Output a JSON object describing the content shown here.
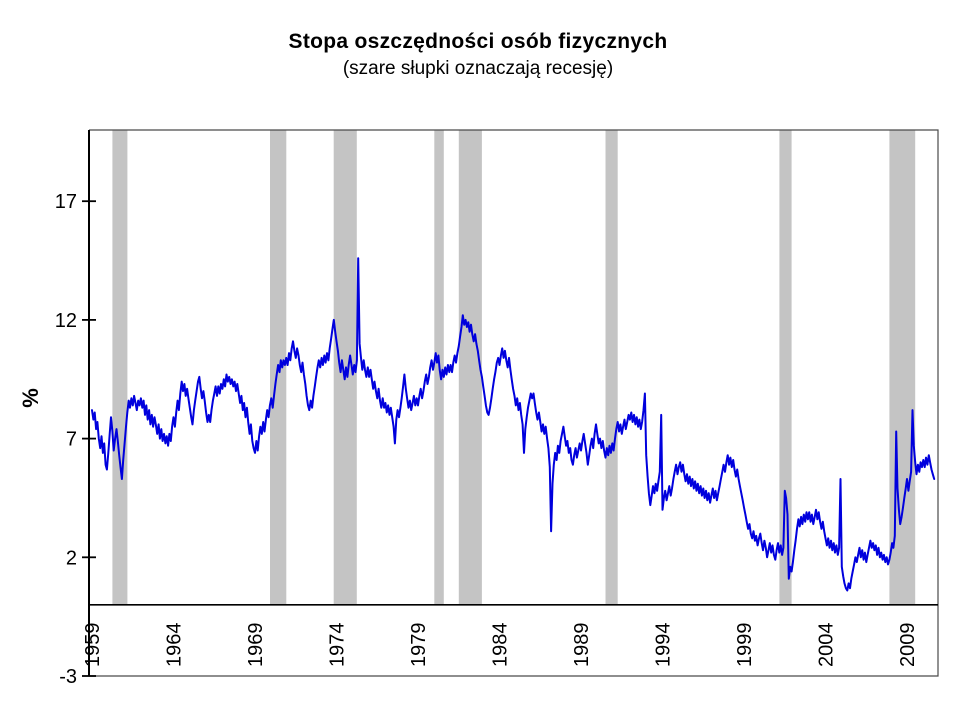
{
  "chart_data": {
    "type": "line",
    "title": "Stopa oszczędności osób fizycznych",
    "subtitle": "(szare słupki oznaczają recesję)",
    "ylabel": "%",
    "xlabel": "",
    "frequency": "monthly",
    "start": "1959-01",
    "end": "2010-09",
    "xlim": [
      1959,
      2010.9
    ],
    "ylim": [
      -3,
      20
    ],
    "y_ticks": [
      -3,
      2,
      7,
      12,
      17
    ],
    "x_ticks": [
      1959,
      1964,
      1969,
      1974,
      1979,
      1984,
      1989,
      1994,
      1999,
      2004,
      2009
    ],
    "grid": false,
    "legend": "none",
    "zero_axis_value": 0,
    "recession_color": "#C4C4C4",
    "frame_color": "#4a4a4a",
    "axis_color": "#000000",
    "recessions": [
      [
        1960.25,
        1961.17
      ],
      [
        1969.92,
        1970.92
      ],
      [
        1973.83,
        1975.25
      ],
      [
        1980.0,
        1980.58
      ],
      [
        1981.5,
        1982.92
      ],
      [
        1990.5,
        1991.25
      ],
      [
        2001.17,
        2001.92
      ],
      [
        2007.92,
        2009.5
      ]
    ],
    "series": [
      {
        "name": "stopa oszczędności (%)",
        "color": "#0000DD",
        "values": [
          8.2,
          7.8,
          8.1,
          7.4,
          7.7,
          7.0,
          6.6,
          7.1,
          6.4,
          6.8,
          5.9,
          5.7,
          6.4,
          7.2,
          7.9,
          7.3,
          6.5,
          7.0,
          7.4,
          6.9,
          6.3,
          5.8,
          5.3,
          6.1,
          6.8,
          7.5,
          8.1,
          8.6,
          8.3,
          8.7,
          8.4,
          8.8,
          8.5,
          8.2,
          8.6,
          8.4,
          8.7,
          8.3,
          8.6,
          8.0,
          8.4,
          7.8,
          8.2,
          7.6,
          8.0,
          7.5,
          7.9,
          7.6,
          7.2,
          7.6,
          7.0,
          7.4,
          6.9,
          7.2,
          6.8,
          7.1,
          6.7,
          7.2,
          6.9,
          7.5,
          7.9,
          7.5,
          8.1,
          8.6,
          8.2,
          8.9,
          9.4,
          9.0,
          9.3,
          8.8,
          9.1,
          8.7,
          8.3,
          7.9,
          7.6,
          8.2,
          8.6,
          9.0,
          9.4,
          9.6,
          9.1,
          8.7,
          9.0,
          8.6,
          8.1,
          7.7,
          8.0,
          7.7,
          8.2,
          8.6,
          8.9,
          9.2,
          8.8,
          9.2,
          8.9,
          9.3,
          9.1,
          9.5,
          9.2,
          9.7,
          9.4,
          9.6,
          9.3,
          9.5,
          9.2,
          9.4,
          9.0,
          9.3,
          8.9,
          8.5,
          8.8,
          8.2,
          8.5,
          7.9,
          8.3,
          7.7,
          7.2,
          7.6,
          6.9,
          6.6,
          6.4,
          6.9,
          6.5,
          7.1,
          7.5,
          7.2,
          7.7,
          7.3,
          7.8,
          8.2,
          7.9,
          8.4,
          8.7,
          8.3,
          8.8,
          9.3,
          9.7,
          10.1,
          9.8,
          10.3,
          10.0,
          10.3,
          10.1,
          10.4,
          10.1,
          10.6,
          10.3,
          10.8,
          11.1,
          10.7,
          10.4,
          10.8,
          10.5,
          10.1,
          9.8,
          10.2,
          9.7,
          9.3,
          8.8,
          8.4,
          8.2,
          8.6,
          8.3,
          8.8,
          9.2,
          9.6,
          10.0,
          10.3,
          10.0,
          10.4,
          10.1,
          10.5,
          10.2,
          10.6,
          10.3,
          10.8,
          11.2,
          11.6,
          12.0,
          11.5,
          11.1,
          10.7,
          10.2,
          9.8,
          10.3,
          9.9,
          9.5,
          10.0,
          9.6,
          10.1,
          10.5,
          10.1,
          9.7,
          10.1,
          9.8,
          10.3,
          14.6,
          11.0,
          10.4,
          9.9,
          10.3,
          9.9,
          9.6,
          10.0,
          9.6,
          9.9,
          9.5,
          9.1,
          9.4,
          9.0,
          8.7,
          9.1,
          8.6,
          8.3,
          8.7,
          8.3,
          8.5,
          8.1,
          8.4,
          8.0,
          8.3,
          7.9,
          7.5,
          6.8,
          7.8,
          8.2,
          7.9,
          8.3,
          8.7,
          9.2,
          9.7,
          9.1,
          8.7,
          8.3,
          8.6,
          8.2,
          8.5,
          8.8,
          8.4,
          8.7,
          8.4,
          8.8,
          9.1,
          8.7,
          9.0,
          9.4,
          9.7,
          9.3,
          9.6,
          10.0,
          10.3,
          9.9,
          10.2,
          10.6,
          10.2,
          10.5,
          9.9,
          9.5,
          9.9,
          9.6,
          10.0,
          9.7,
          10.1,
          9.8,
          10.1,
          9.8,
          10.2,
          10.5,
          10.2,
          10.6,
          10.9,
          11.3,
          11.7,
          12.2,
          11.8,
          12.0,
          11.7,
          11.9,
          11.5,
          11.8,
          11.4,
          11.1,
          11.4,
          11.0,
          10.7,
          10.3,
          9.9,
          9.6,
          9.2,
          8.8,
          8.4,
          8.1,
          8.0,
          8.3,
          8.7,
          9.1,
          9.5,
          9.8,
          10.2,
          10.4,
          10.1,
          10.5,
          10.8,
          10.4,
          10.7,
          10.3,
          10.0,
          10.4,
          9.9,
          9.5,
          9.1,
          8.8,
          8.4,
          8.7,
          8.2,
          8.5,
          8.0,
          7.6,
          6.4,
          7.4,
          7.9,
          8.3,
          8.6,
          8.9,
          8.7,
          8.9,
          8.5,
          8.1,
          7.8,
          8.1,
          7.7,
          7.3,
          7.6,
          7.2,
          7.5,
          7.0,
          6.6,
          5.8,
          3.1,
          5.1,
          5.9,
          6.4,
          6.1,
          6.7,
          6.4,
          6.9,
          7.2,
          7.5,
          7.1,
          6.7,
          6.9,
          6.4,
          6.6,
          6.1,
          5.9,
          6.3,
          6.6,
          6.2,
          6.5,
          6.8,
          6.5,
          6.9,
          7.2,
          6.8,
          6.4,
          5.9,
          6.3,
          6.7,
          7.0,
          6.6,
          7.2,
          7.6,
          7.2,
          6.8,
          7.0,
          6.6,
          6.9,
          6.5,
          6.2,
          6.6,
          6.3,
          6.7,
          6.4,
          6.8,
          6.5,
          7.0,
          7.4,
          7.7,
          7.3,
          7.6,
          7.2,
          7.5,
          7.8,
          7.4,
          7.7,
          8.0,
          7.8,
          8.1,
          7.7,
          8.0,
          7.6,
          7.9,
          7.5,
          7.8,
          7.4,
          7.7,
          8.2,
          8.9,
          6.3,
          5.4,
          4.7,
          4.2,
          4.6,
          5.0,
          4.7,
          5.1,
          4.8,
          5.2,
          5.6,
          8.0,
          4.0,
          4.5,
          4.8,
          4.4,
          4.7,
          5.0,
          4.6,
          4.9,
          5.3,
          5.6,
          5.9,
          5.5,
          5.8,
          6.0,
          5.6,
          5.9,
          5.5,
          5.2,
          5.5,
          5.1,
          5.4,
          5.0,
          5.3,
          4.9,
          5.2,
          4.8,
          5.1,
          4.7,
          5.0,
          4.6,
          4.9,
          4.5,
          4.8,
          4.4,
          4.7,
          4.3,
          4.6,
          4.9,
          4.5,
          4.8,
          4.4,
          4.7,
          5.0,
          5.3,
          5.6,
          5.9,
          5.6,
          6.0,
          6.3,
          5.9,
          6.2,
          5.8,
          6.1,
          5.7,
          5.4,
          5.7,
          5.3,
          5.0,
          4.7,
          4.4,
          4.1,
          3.8,
          3.5,
          3.2,
          3.4,
          3.0,
          2.8,
          3.1,
          2.7,
          2.9,
          2.5,
          2.8,
          3.0,
          2.6,
          2.3,
          2.7,
          2.4,
          2.0,
          2.3,
          2.6,
          2.2,
          2.5,
          2.1,
          1.9,
          2.3,
          2.6,
          2.2,
          2.5,
          2.1,
          2.4,
          4.8,
          4.5,
          3.8,
          1.1,
          1.6,
          1.4,
          1.8,
          2.3,
          2.7,
          3.2,
          3.6,
          3.3,
          3.7,
          3.4,
          3.8,
          3.5,
          3.9,
          3.6,
          3.9,
          3.5,
          3.8,
          3.4,
          3.7,
          4.0,
          3.6,
          3.9,
          3.5,
          3.2,
          3.5,
          3.1,
          2.8,
          2.5,
          2.8,
          2.4,
          2.7,
          2.3,
          2.6,
          2.2,
          2.5,
          2.1,
          2.4,
          5.3,
          1.6,
          1.2,
          0.9,
          0.7,
          0.6,
          0.9,
          0.7,
          1.1,
          1.4,
          1.7,
          2.0,
          1.8,
          2.1,
          2.4,
          2.0,
          2.3,
          1.9,
          2.2,
          1.8,
          2.1,
          2.4,
          2.7,
          2.4,
          2.6,
          2.3,
          2.5,
          2.1,
          2.4,
          2.0,
          2.2,
          1.9,
          2.1,
          1.8,
          2.0,
          1.7,
          1.9,
          2.2,
          2.6,
          2.4,
          2.9,
          7.3,
          4.9,
          4.0,
          3.4,
          3.7,
          4.1,
          4.5,
          4.9,
          5.3,
          4.8,
          5.2,
          5.6,
          8.2,
          6.7,
          6.0,
          5.5,
          5.9,
          5.6,
          6.0,
          5.8,
          6.1,
          5.8,
          6.2,
          5.9,
          6.3,
          6.0,
          5.7,
          5.5,
          5.3
        ]
      }
    ]
  }
}
